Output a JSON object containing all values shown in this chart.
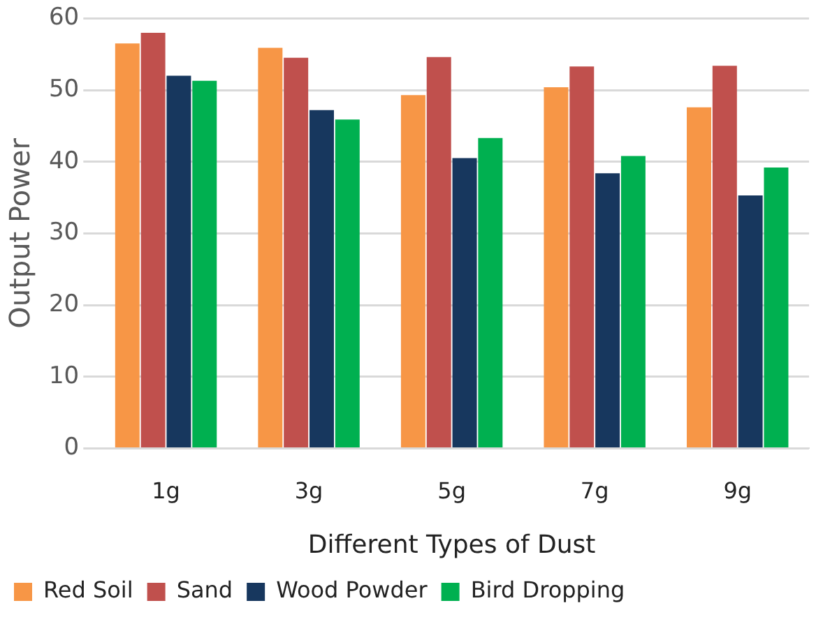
{
  "chart_data": {
    "type": "bar",
    "xlabel": "Different Types of Dust",
    "ylabel": "Output Power",
    "categories": [
      "1g",
      "3g",
      "5g",
      "7g",
      "9g"
    ],
    "series": [
      {
        "name": "Red Soil",
        "color": "#f79646",
        "values": [
          56.5,
          55.9,
          49.3,
          50.4,
          47.6
        ]
      },
      {
        "name": "Sand",
        "color": "#c0504d",
        "values": [
          58,
          54.5,
          54.6,
          53.3,
          53.4
        ]
      },
      {
        "name": "Wood Powder",
        "color": "#17375e",
        "values": [
          52,
          47.2,
          40.5,
          38.4,
          35.3
        ]
      },
      {
        "name": "Bird Dropping",
        "color": "#00b050",
        "values": [
          51.3,
          45.9,
          43.3,
          40.8,
          39.2
        ]
      }
    ],
    "ylim": [
      0,
      60
    ],
    "yticks": [
      0,
      10,
      20,
      30,
      40,
      50,
      60
    ],
    "grid": "y",
    "legend": "bottom left"
  }
}
